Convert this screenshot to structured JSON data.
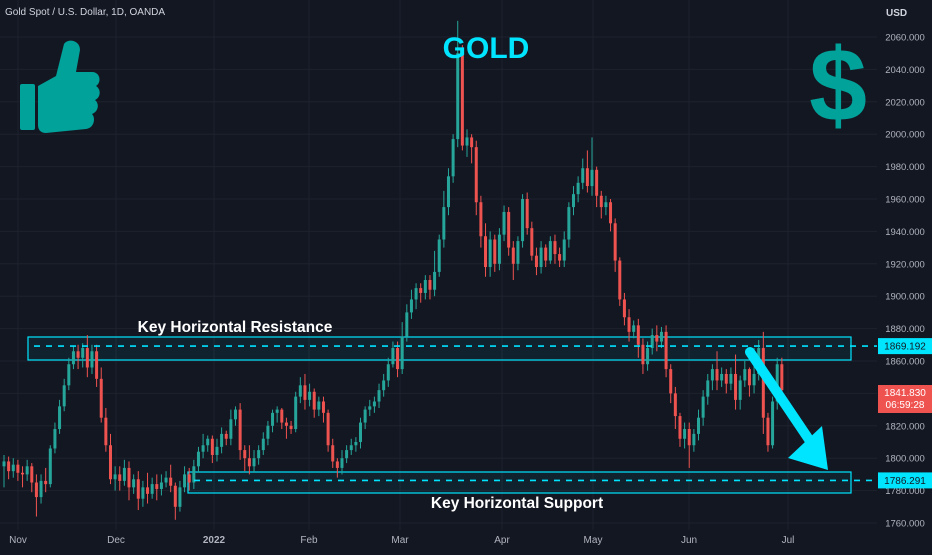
{
  "header": {
    "symbol_title": "Gold Spot / U.S. Dollar, 1D, OANDA",
    "currency": "USD"
  },
  "annotations": {
    "title": "GOLD",
    "resistance_label": "Key Horizontal Resistance",
    "support_label": "Key Horizontal Support",
    "thumbs_icon": "thumbs-up-icon",
    "dollar_icon": "dollar-sign-icon",
    "dollar_glyph": "$"
  },
  "colors": {
    "background": "#131722",
    "up": "#26a69a",
    "down": "#ef5350",
    "accent": "#00e5ff",
    "icon": "#00a29a"
  },
  "price_tags": {
    "resistance_level": "1869.192",
    "current_price": "1841.830",
    "countdown": "06:59:28",
    "support_level": "1786.291"
  },
  "chart_data": {
    "type": "candlestick",
    "title": "Gold Spot / U.S. Dollar, 1D, OANDA",
    "ylabel": "USD",
    "ylim": [
      1756,
      2082
    ],
    "y_ticks": [
      "1760.000",
      "1780.000",
      "1800.000",
      "1820.000",
      "1840.000",
      "1860.000",
      "1880.000",
      "1900.000",
      "1920.000",
      "1940.000",
      "1960.000",
      "1980.000",
      "2000.000",
      "2020.000",
      "2040.000",
      "2060.000"
    ],
    "x_ticks": [
      "Nov",
      "Dec",
      "2022",
      "Feb",
      "Mar",
      "Apr",
      "May",
      "Jun",
      "Jul"
    ],
    "levels": {
      "resistance": 1869.192,
      "support": 1786.291,
      "last": 1841.83
    },
    "series": [
      {
        "points": [
          [
            1795,
            1798,
            1782,
            1802
          ],
          [
            1798,
            1792,
            1787,
            1801
          ],
          [
            1792,
            1796,
            1788,
            1800
          ],
          [
            1796,
            1791,
            1786,
            1799
          ],
          [
            1791,
            1790,
            1782,
            1795
          ],
          [
            1790,
            1795,
            1786,
            1799
          ],
          [
            1795,
            1785,
            1779,
            1797
          ],
          [
            1785,
            1776,
            1764,
            1790
          ],
          [
            1776,
            1786,
            1772,
            1790
          ],
          [
            1786,
            1784,
            1779,
            1794
          ],
          [
            1784,
            1806,
            1782,
            1808
          ],
          [
            1806,
            1818,
            1803,
            1822
          ],
          [
            1818,
            1832,
            1815,
            1836
          ],
          [
            1832,
            1845,
            1829,
            1849
          ],
          [
            1845,
            1858,
            1842,
            1862
          ],
          [
            1858,
            1866,
            1855,
            1869
          ],
          [
            1866,
            1862,
            1855,
            1870
          ],
          [
            1862,
            1868,
            1856,
            1871
          ],
          [
            1868,
            1856,
            1850,
            1876
          ],
          [
            1856,
            1866,
            1852,
            1870
          ],
          [
            1866,
            1849,
            1844,
            1870
          ],
          [
            1849,
            1825,
            1822,
            1856
          ],
          [
            1825,
            1808,
            1804,
            1831
          ],
          [
            1808,
            1787,
            1784,
            1815
          ],
          [
            1787,
            1790,
            1780,
            1795
          ],
          [
            1790,
            1786,
            1780,
            1795
          ],
          [
            1786,
            1794,
            1783,
            1799
          ],
          [
            1794,
            1782,
            1774,
            1798
          ],
          [
            1782,
            1787,
            1778,
            1790
          ],
          [
            1787,
            1775,
            1768,
            1792
          ],
          [
            1775,
            1782,
            1770,
            1786
          ],
          [
            1782,
            1778,
            1772,
            1791
          ],
          [
            1778,
            1784,
            1775,
            1788
          ],
          [
            1784,
            1781,
            1774,
            1790
          ],
          [
            1781,
            1785,
            1777,
            1790
          ],
          [
            1785,
            1788,
            1782,
            1792
          ],
          [
            1788,
            1783,
            1779,
            1796
          ],
          [
            1783,
            1770,
            1762,
            1785
          ],
          [
            1770,
            1782,
            1767,
            1786
          ],
          [
            1782,
            1790,
            1779,
            1795
          ],
          [
            1790,
            1785,
            1780,
            1794
          ],
          [
            1785,
            1795,
            1781,
            1799
          ],
          [
            1795,
            1804,
            1791,
            1807
          ],
          [
            1804,
            1808,
            1800,
            1815
          ],
          [
            1808,
            1812,
            1804,
            1814
          ],
          [
            1812,
            1802,
            1797,
            1814
          ],
          [
            1802,
            1807,
            1798,
            1812
          ],
          [
            1807,
            1815,
            1803,
            1819
          ],
          [
            1815,
            1812,
            1808,
            1817
          ],
          [
            1812,
            1824,
            1808,
            1830
          ],
          [
            1824,
            1830,
            1820,
            1832
          ],
          [
            1830,
            1805,
            1799,
            1834
          ],
          [
            1805,
            1800,
            1792,
            1808
          ],
          [
            1800,
            1795,
            1790,
            1808
          ],
          [
            1795,
            1800,
            1791,
            1805
          ],
          [
            1800,
            1805,
            1796,
            1808
          ],
          [
            1805,
            1812,
            1802,
            1816
          ],
          [
            1812,
            1820,
            1808,
            1823
          ],
          [
            1820,
            1828,
            1816,
            1830
          ],
          [
            1828,
            1830,
            1822,
            1832
          ],
          [
            1830,
            1822,
            1818,
            1831
          ],
          [
            1822,
            1820,
            1812,
            1825
          ],
          [
            1820,
            1818,
            1815,
            1823
          ],
          [
            1818,
            1838,
            1816,
            1841
          ],
          [
            1838,
            1845,
            1834,
            1850
          ],
          [
            1845,
            1836,
            1830,
            1852
          ],
          [
            1836,
            1841,
            1832,
            1846
          ],
          [
            1841,
            1830,
            1825,
            1843
          ],
          [
            1830,
            1835,
            1826,
            1838
          ],
          [
            1835,
            1828,
            1822,
            1838
          ],
          [
            1828,
            1808,
            1804,
            1830
          ],
          [
            1808,
            1798,
            1794,
            1812
          ],
          [
            1798,
            1794,
            1788,
            1800
          ],
          [
            1794,
            1800,
            1790,
            1805
          ],
          [
            1800,
            1805,
            1797,
            1808
          ],
          [
            1805,
            1808,
            1802,
            1812
          ],
          [
            1808,
            1810,
            1804,
            1813
          ],
          [
            1810,
            1822,
            1806,
            1825
          ],
          [
            1822,
            1830,
            1818,
            1832
          ],
          [
            1830,
            1832,
            1826,
            1836
          ],
          [
            1832,
            1835,
            1828,
            1838
          ],
          [
            1835,
            1842,
            1831,
            1846
          ],
          [
            1842,
            1848,
            1838,
            1852
          ],
          [
            1848,
            1858,
            1844,
            1862
          ],
          [
            1858,
            1868,
            1856,
            1872
          ],
          [
            1868,
            1855,
            1850,
            1872
          ],
          [
            1855,
            1875,
            1852,
            1884
          ],
          [
            1875,
            1890,
            1872,
            1895
          ],
          [
            1890,
            1898,
            1886,
            1904
          ],
          [
            1898,
            1905,
            1892,
            1908
          ],
          [
            1905,
            1902,
            1896,
            1908
          ],
          [
            1902,
            1910,
            1898,
            1913
          ],
          [
            1910,
            1904,
            1898,
            1913
          ],
          [
            1904,
            1915,
            1900,
            1928
          ],
          [
            1915,
            1935,
            1912,
            1938
          ],
          [
            1935,
            1955,
            1930,
            1965
          ],
          [
            1955,
            1974,
            1950,
            1979
          ],
          [
            1974,
            1997,
            1970,
            2000
          ],
          [
            1997,
            2050,
            1992,
            2070
          ],
          [
            2050,
            1993,
            1990,
            2055
          ],
          [
            1993,
            1998,
            1986,
            2003
          ],
          [
            1998,
            1992,
            1982,
            2000
          ],
          [
            1992,
            1958,
            1950,
            1996
          ],
          [
            1958,
            1937,
            1930,
            1962
          ],
          [
            1937,
            1918,
            1912,
            1945
          ],
          [
            1918,
            1935,
            1912,
            1940
          ],
          [
            1935,
            1920,
            1915,
            1938
          ],
          [
            1920,
            1938,
            1916,
            1942
          ],
          [
            1938,
            1952,
            1934,
            1956
          ],
          [
            1952,
            1930,
            1925,
            1955
          ],
          [
            1930,
            1920,
            1910,
            1934
          ],
          [
            1920,
            1934,
            1916,
            1937
          ],
          [
            1934,
            1960,
            1930,
            1963
          ],
          [
            1960,
            1942,
            1938,
            1964
          ],
          [
            1942,
            1925,
            1922,
            1946
          ],
          [
            1925,
            1918,
            1913,
            1930
          ],
          [
            1918,
            1930,
            1914,
            1934
          ],
          [
            1930,
            1922,
            1918,
            1932
          ],
          [
            1922,
            1934,
            1920,
            1937
          ],
          [
            1934,
            1926,
            1920,
            1938
          ],
          [
            1926,
            1922,
            1918,
            1930
          ],
          [
            1922,
            1935,
            1918,
            1940
          ],
          [
            1935,
            1955,
            1930,
            1958
          ],
          [
            1955,
            1963,
            1950,
            1968
          ],
          [
            1963,
            1970,
            1958,
            1974
          ],
          [
            1970,
            1979,
            1966,
            1985
          ],
          [
            1979,
            1968,
            1964,
            1990
          ],
          [
            1968,
            1978,
            1962,
            1998
          ],
          [
            1978,
            1962,
            1955,
            1980
          ],
          [
            1962,
            1955,
            1948,
            1965
          ],
          [
            1955,
            1958,
            1950,
            1962
          ],
          [
            1958,
            1945,
            1940,
            1960
          ],
          [
            1945,
            1922,
            1915,
            1948
          ],
          [
            1922,
            1898,
            1894,
            1924
          ],
          [
            1898,
            1887,
            1882,
            1902
          ],
          [
            1887,
            1878,
            1872,
            1892
          ],
          [
            1878,
            1882,
            1874,
            1885
          ],
          [
            1882,
            1870,
            1862,
            1886
          ],
          [
            1870,
            1858,
            1852,
            1874
          ],
          [
            1858,
            1868,
            1854,
            1872
          ],
          [
            1868,
            1876,
            1864,
            1880
          ],
          [
            1876,
            1872,
            1866,
            1882
          ],
          [
            1872,
            1878,
            1868,
            1881
          ],
          [
            1878,
            1855,
            1850,
            1882
          ],
          [
            1855,
            1840,
            1834,
            1858
          ],
          [
            1840,
            1826,
            1818,
            1844
          ],
          [
            1826,
            1812,
            1807,
            1828
          ],
          [
            1812,
            1818,
            1806,
            1822
          ],
          [
            1818,
            1808,
            1794,
            1822
          ],
          [
            1808,
            1815,
            1804,
            1818
          ],
          [
            1815,
            1825,
            1811,
            1830
          ],
          [
            1825,
            1838,
            1820,
            1842
          ],
          [
            1838,
            1848,
            1833,
            1852
          ],
          [
            1848,
            1855,
            1842,
            1858
          ],
          [
            1855,
            1848,
            1842,
            1866
          ],
          [
            1848,
            1852,
            1844,
            1856
          ],
          [
            1852,
            1846,
            1840,
            1855
          ],
          [
            1846,
            1852,
            1842,
            1856
          ],
          [
            1852,
            1836,
            1830,
            1864
          ],
          [
            1836,
            1848,
            1830,
            1851
          ],
          [
            1848,
            1855,
            1844,
            1860
          ],
          [
            1855,
            1845,
            1838,
            1856
          ],
          [
            1845,
            1852,
            1840,
            1868
          ],
          [
            1852,
            1868,
            1848,
            1873
          ],
          [
            1868,
            1825,
            1815,
            1878
          ],
          [
            1825,
            1808,
            1804,
            1828
          ],
          [
            1808,
            1835,
            1806,
            1838
          ],
          [
            1835,
            1858,
            1830,
            1862
          ],
          [
            1858,
            1842,
            1838,
            1862
          ]
        ]
      }
    ]
  }
}
